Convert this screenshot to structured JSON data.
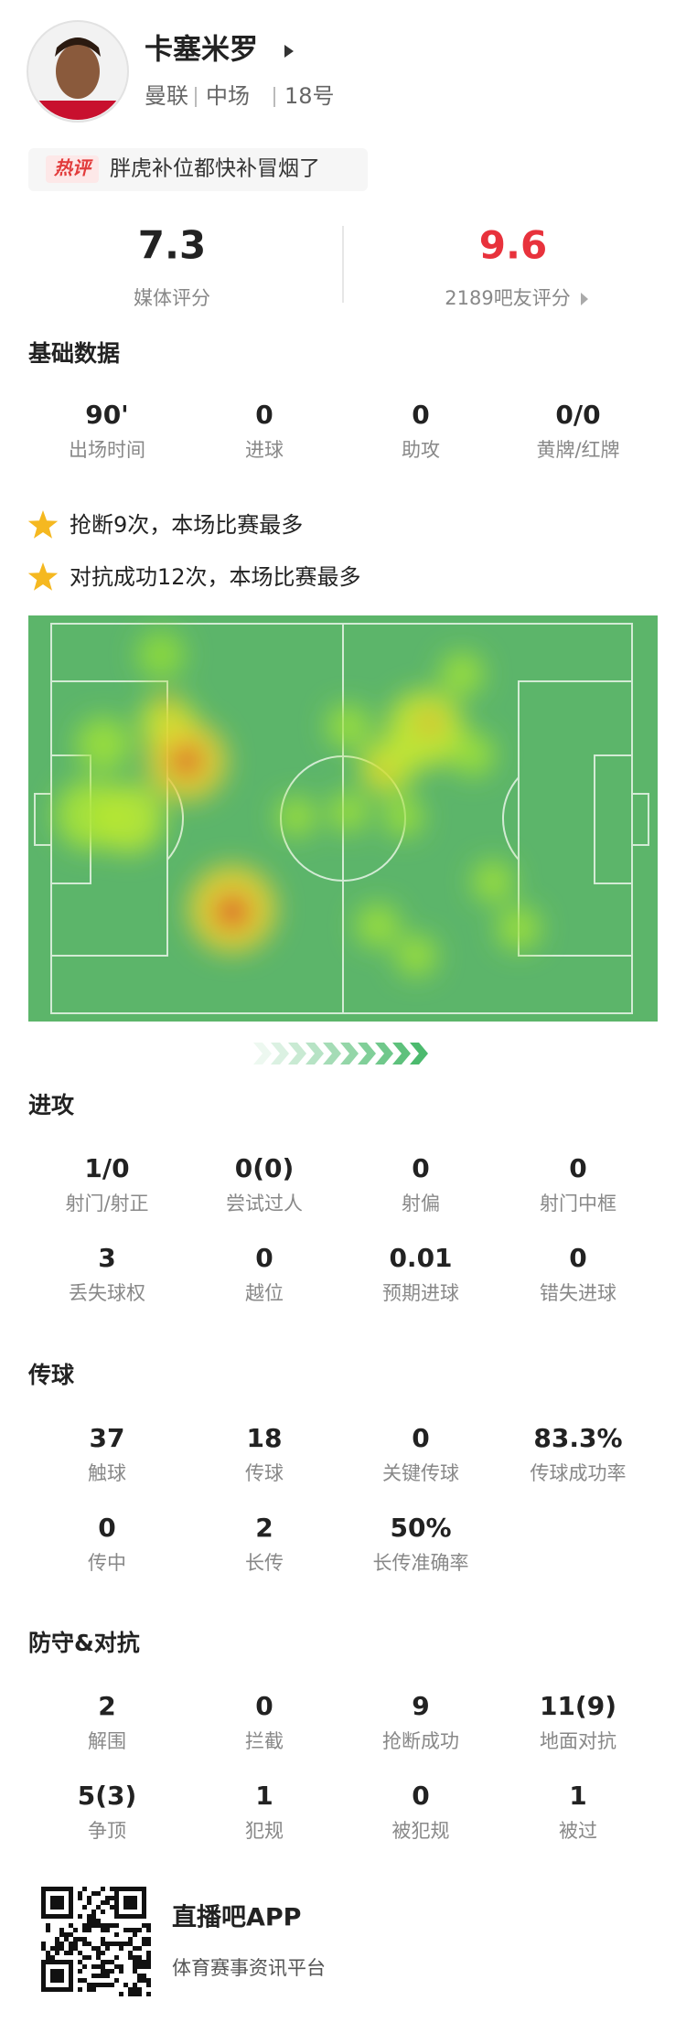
{
  "player": {
    "name": "卡塞米罗",
    "team": "曼联",
    "position": "中场",
    "number": "18号"
  },
  "hot_comment": {
    "tag": "热评",
    "text": "胖虎补位都快补冒烟了"
  },
  "ratings": [
    {
      "value": "7.3",
      "label": "媒体评分"
    },
    {
      "value": "9.6",
      "label": "2189吧友评分"
    }
  ],
  "basic": {
    "title": "基础数据",
    "stats": [
      {
        "value": "90'",
        "label": "出场时间"
      },
      {
        "value": "0",
        "label": "进球"
      },
      {
        "value": "0",
        "label": "助攻"
      },
      {
        "value": "0/0",
        "label": "黄牌/红牌"
      }
    ]
  },
  "highlights": [
    "抢断9次，本场比赛最多",
    "对抗成功12次，本场比赛最多"
  ],
  "sections": [
    {
      "title": "进攻",
      "stats": [
        {
          "value": "1/0",
          "label": "射门/射正"
        },
        {
          "value": "0(0)",
          "label": "尝试过人"
        },
        {
          "value": "0",
          "label": "射偏"
        },
        {
          "value": "0",
          "label": "射门中框"
        },
        {
          "value": "3",
          "label": "丢失球权"
        },
        {
          "value": "0",
          "label": "越位"
        },
        {
          "value": "0.01",
          "label": "预期进球"
        },
        {
          "value": "0",
          "label": "错失进球"
        }
      ]
    },
    {
      "title": "传球",
      "stats": [
        {
          "value": "37",
          "label": "触球"
        },
        {
          "value": "18",
          "label": "传球"
        },
        {
          "value": "0",
          "label": "关键传球"
        },
        {
          "value": "83.3%",
          "label": "传球成功率"
        },
        {
          "value": "0",
          "label": "传中"
        },
        {
          "value": "2",
          "label": "长传"
        },
        {
          "value": "50%",
          "label": "长传准确率"
        }
      ]
    },
    {
      "title": "防守&对抗",
      "stats": [
        {
          "value": "2",
          "label": "解围"
        },
        {
          "value": "0",
          "label": "拦截"
        },
        {
          "value": "9",
          "label": "抢断成功"
        },
        {
          "value": "11(9)",
          "label": "地面对抗"
        },
        {
          "value": "5(3)",
          "label": "争顶"
        },
        {
          "value": "1",
          "label": "犯规"
        },
        {
          "value": "0",
          "label": "被犯规"
        },
        {
          "value": "1",
          "label": "被过"
        }
      ]
    }
  ],
  "footer": {
    "app": "直播吧APP",
    "tagline": "体育赛事资讯平台"
  }
}
